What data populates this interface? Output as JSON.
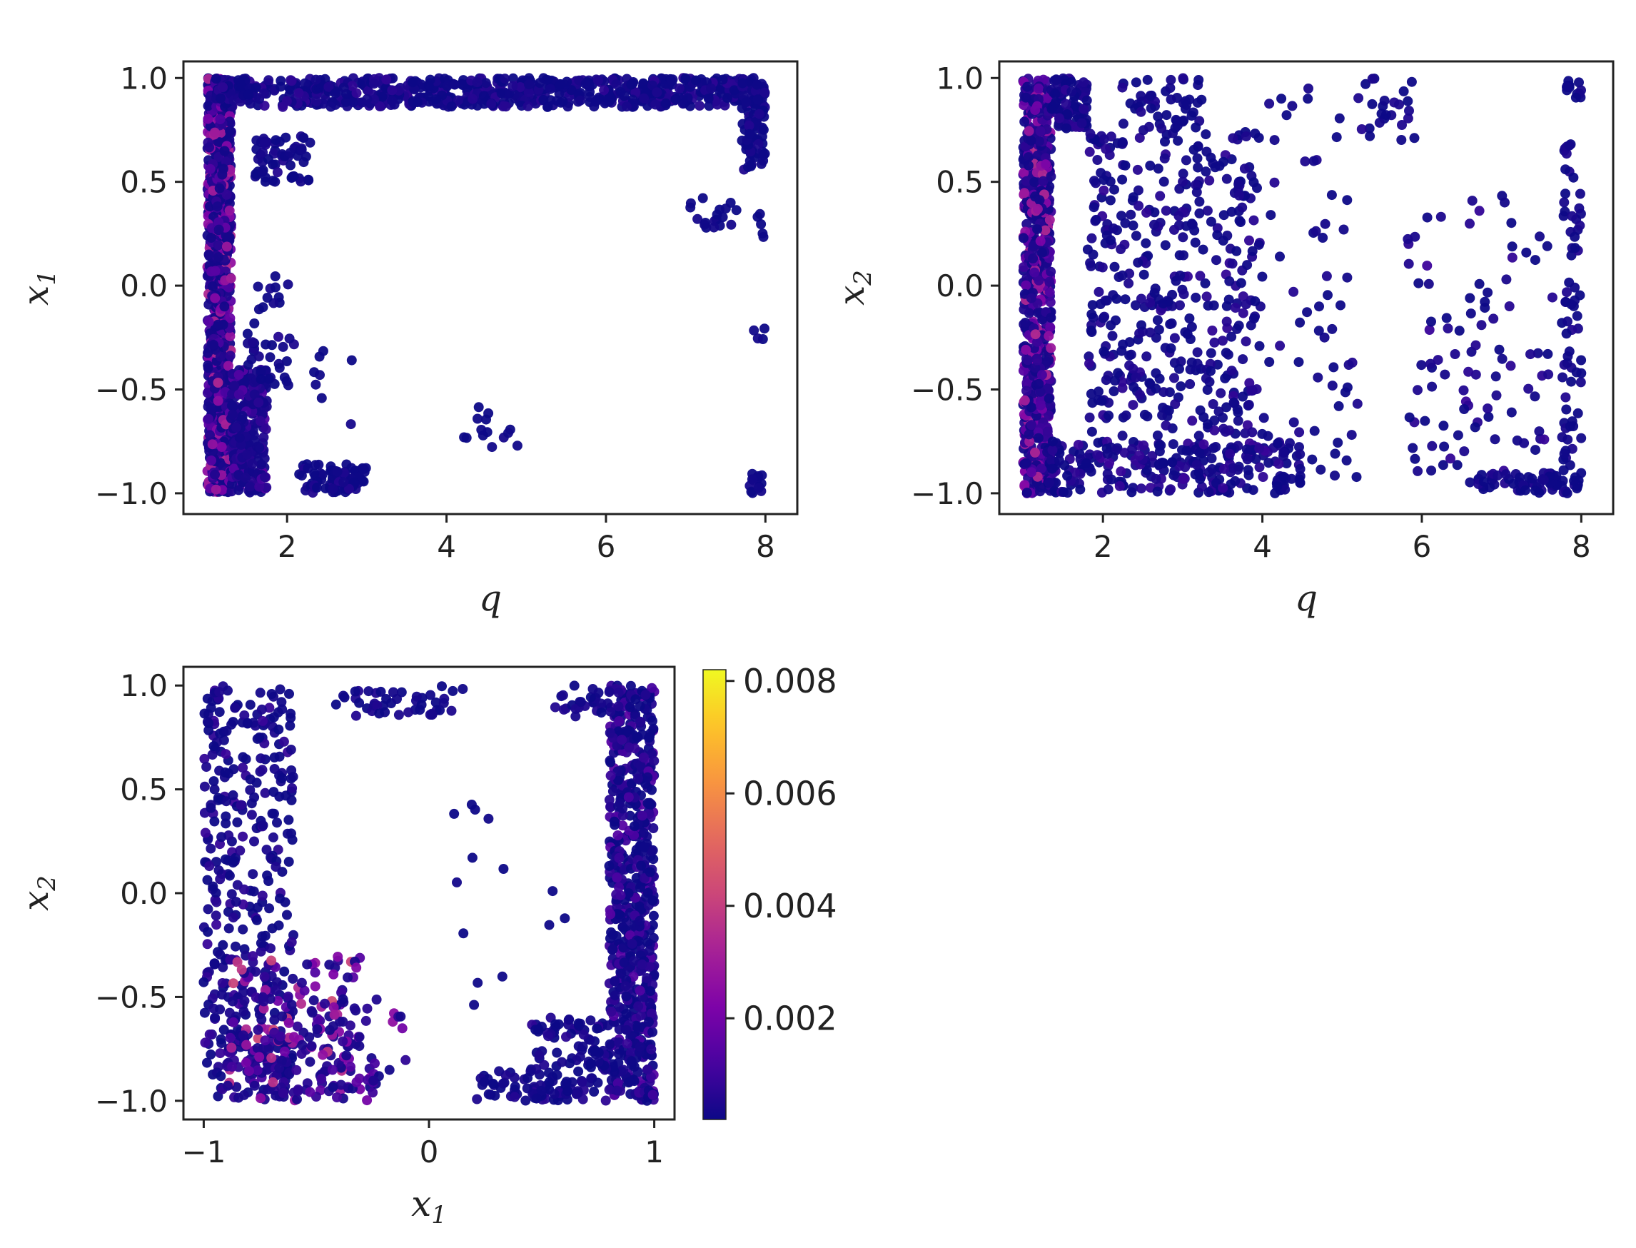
{
  "chart_data": [
    {
      "type": "scatter",
      "panel": "top-left",
      "xlabel": "q",
      "ylabel": "x",
      "ylabel_sub": "1",
      "xlim": [
        0.7,
        8.4
      ],
      "ylim": [
        -1.1,
        1.08
      ],
      "xticks": [
        2,
        4,
        6,
        8
      ],
      "xtick_labels": [
        "2",
        "4",
        "6",
        "8"
      ],
      "yticks": [
        1.0,
        0.5,
        0.0,
        -0.5,
        -1.0
      ],
      "ytick_labels": [
        "1.0",
        "0.5",
        "0.0",
        "−0.5",
        "−1.0"
      ],
      "grid": false,
      "clusters": [
        {
          "x": [
            1.0,
            1.3
          ],
          "y": [
            -1.0,
            1.0
          ],
          "n": 900,
          "c": [
            0.0003,
            0.0035
          ]
        },
        {
          "x": [
            1.3,
            1.75
          ],
          "y": [
            -1.0,
            -0.4
          ],
          "n": 260,
          "c": [
            0.0003,
            0.0015
          ]
        },
        {
          "x": [
            1.1,
            8.0
          ],
          "y": [
            0.86,
            1.0
          ],
          "n": 700,
          "c": [
            0.0002,
            0.0008
          ]
        },
        {
          "x": [
            1.6,
            2.3
          ],
          "y": [
            0.5,
            0.72
          ],
          "n": 60,
          "c": [
            0.0002,
            0.0006
          ]
        },
        {
          "x": [
            7.7,
            8.0
          ],
          "y": [
            0.55,
            1.0
          ],
          "n": 90,
          "c": [
            0.0002,
            0.0006
          ]
        },
        {
          "x": [
            7.05,
            7.65
          ],
          "y": [
            0.27,
            0.43
          ],
          "n": 18,
          "c": [
            0.0002,
            0.0004
          ]
        },
        {
          "x": [
            7.9,
            8.0
          ],
          "y": [
            0.22,
            0.35
          ],
          "n": 5,
          "c": [
            0.0002,
            0.0004
          ]
        },
        {
          "x": [
            7.85,
            8.0
          ],
          "y": [
            -0.26,
            -0.2
          ],
          "n": 4,
          "c": [
            0.0002,
            0.0004
          ]
        },
        {
          "x": [
            7.8,
            8.0
          ],
          "y": [
            -1.0,
            -0.9
          ],
          "n": 14,
          "c": [
            0.0002,
            0.0004
          ]
        },
        {
          "x": [
            2.15,
            3.0
          ],
          "y": [
            -1.0,
            -0.86
          ],
          "n": 80,
          "c": [
            0.0002,
            0.0006
          ]
        },
        {
          "x": [
            4.15,
            4.9
          ],
          "y": [
            -0.8,
            -0.58
          ],
          "n": 14,
          "c": [
            0.0002,
            0.0004
          ]
        },
        {
          "x": [
            1.5,
            2.1
          ],
          "y": [
            -0.5,
            0.05
          ],
          "n": 40,
          "c": [
            0.0002,
            0.0006
          ]
        },
        {
          "x": [
            2.3,
            3.0
          ],
          "y": [
            -0.7,
            -0.3
          ],
          "n": 8,
          "c": [
            0.0002,
            0.0004
          ]
        }
      ]
    },
    {
      "type": "scatter",
      "panel": "top-right",
      "xlabel": "q",
      "ylabel": "x",
      "ylabel_sub": "2",
      "xlim": [
        0.7,
        8.4
      ],
      "ylim": [
        -1.1,
        1.08
      ],
      "xticks": [
        2,
        4,
        6,
        8
      ],
      "xtick_labels": [
        "2",
        "4",
        "6",
        "8"
      ],
      "yticks": [
        1.0,
        0.5,
        0.0,
        -0.5,
        -1.0
      ],
      "ytick_labels": [
        "1.0",
        "0.5",
        "0.0",
        "−0.5",
        "−1.0"
      ],
      "grid": false,
      "clusters": [
        {
          "x": [
            1.0,
            1.35
          ],
          "y": [
            -1.0,
            1.0
          ],
          "n": 750,
          "c": [
            0.0003,
            0.0035
          ]
        },
        {
          "x": [
            1.35,
            1.8
          ],
          "y": [
            0.75,
            1.0
          ],
          "n": 90,
          "c": [
            0.0002,
            0.0008
          ]
        },
        {
          "x": [
            1.3,
            4.5
          ],
          "y": [
            -1.0,
            -0.75
          ],
          "n": 260,
          "c": [
            0.0002,
            0.001
          ]
        },
        {
          "x": [
            1.8,
            4.0
          ],
          "y": [
            -0.75,
            0.75
          ],
          "n": 420,
          "c": [
            0.0002,
            0.0008
          ]
        },
        {
          "x": [
            2.2,
            3.3
          ],
          "y": [
            0.75,
            1.0
          ],
          "n": 50,
          "c": [
            0.0002,
            0.0006
          ]
        },
        {
          "x": [
            4.0,
            5.2
          ],
          "y": [
            -1.0,
            0.95
          ],
          "n": 60,
          "c": [
            0.0002,
            0.0006
          ]
        },
        {
          "x": [
            5.2,
            6.0
          ],
          "y": [
            0.7,
            1.0
          ],
          "n": 25,
          "c": [
            0.0002,
            0.0006
          ]
        },
        {
          "x": [
            5.8,
            8.0
          ],
          "y": [
            -0.95,
            0.45
          ],
          "n": 110,
          "c": [
            0.0002,
            0.001
          ]
        },
        {
          "x": [
            6.7,
            8.0
          ],
          "y": [
            -1.0,
            -0.9
          ],
          "n": 60,
          "c": [
            0.0002,
            0.0006
          ]
        },
        {
          "x": [
            7.75,
            8.0
          ],
          "y": [
            -1.0,
            0.7
          ],
          "n": 60,
          "c": [
            0.0002,
            0.0006
          ]
        },
        {
          "x": [
            7.8,
            8.0
          ],
          "y": [
            0.9,
            1.0
          ],
          "n": 12,
          "c": [
            0.0002,
            0.0004
          ]
        }
      ]
    },
    {
      "type": "scatter",
      "panel": "bottom-left",
      "xlabel": "x",
      "xlabel_sub": "1",
      "ylabel": "x",
      "ylabel_sub": "2",
      "xlim": [
        -1.09,
        1.09
      ],
      "ylim": [
        -1.09,
        1.09
      ],
      "xticks": [
        -1,
        0,
        1
      ],
      "xtick_labels": [
        "−1",
        "0",
        "1"
      ],
      "yticks": [
        1.0,
        0.5,
        0.0,
        -0.5,
        -1.0
      ],
      "ytick_labels": [
        "1.0",
        "0.5",
        "0.0",
        "−0.5",
        "−1.0"
      ],
      "grid": false,
      "clusters": [
        {
          "x": [
            -1.0,
            -0.6
          ],
          "y": [
            -1.0,
            1.0
          ],
          "n": 380,
          "c": [
            0.0002,
            0.001
          ]
        },
        {
          "x": [
            -0.9,
            -0.3
          ],
          "y": [
            -1.0,
            -0.3
          ],
          "n": 220,
          "c": [
            0.0004,
            0.0045
          ]
        },
        {
          "x": [
            -0.45,
            -0.1
          ],
          "y": [
            -1.0,
            -0.5
          ],
          "n": 40,
          "c": [
            0.0003,
            0.003
          ]
        },
        {
          "x": [
            -0.45,
            0.15
          ],
          "y": [
            0.85,
            1.0
          ],
          "n": 45,
          "c": [
            0.0002,
            0.0006
          ]
        },
        {
          "x": [
            0.8,
            1.0
          ],
          "y": [
            -1.0,
            1.0
          ],
          "n": 650,
          "c": [
            0.0002,
            0.0015
          ]
        },
        {
          "x": [
            0.45,
            0.8
          ],
          "y": [
            -1.0,
            -0.6
          ],
          "n": 120,
          "c": [
            0.0002,
            0.0008
          ]
        },
        {
          "x": [
            0.2,
            0.5
          ],
          "y": [
            -1.0,
            -0.85
          ],
          "n": 35,
          "c": [
            0.0002,
            0.0006
          ]
        },
        {
          "x": [
            0.55,
            0.8
          ],
          "y": [
            0.85,
            1.0
          ],
          "n": 25,
          "c": [
            0.0002,
            0.0006
          ]
        },
        {
          "x": [
            0.1,
            0.7
          ],
          "y": [
            -0.6,
            0.45
          ],
          "n": 14,
          "c": [
            0.0002,
            0.0004
          ]
        }
      ]
    }
  ],
  "colorbar": {
    "cmap": "plasma",
    "min": 0.0002,
    "max": 0.0082,
    "ticks": [
      0.002,
      0.004,
      0.006,
      0.008
    ],
    "tick_labels": [
      "0.002",
      "0.004",
      "0.006",
      "0.008"
    ]
  }
}
